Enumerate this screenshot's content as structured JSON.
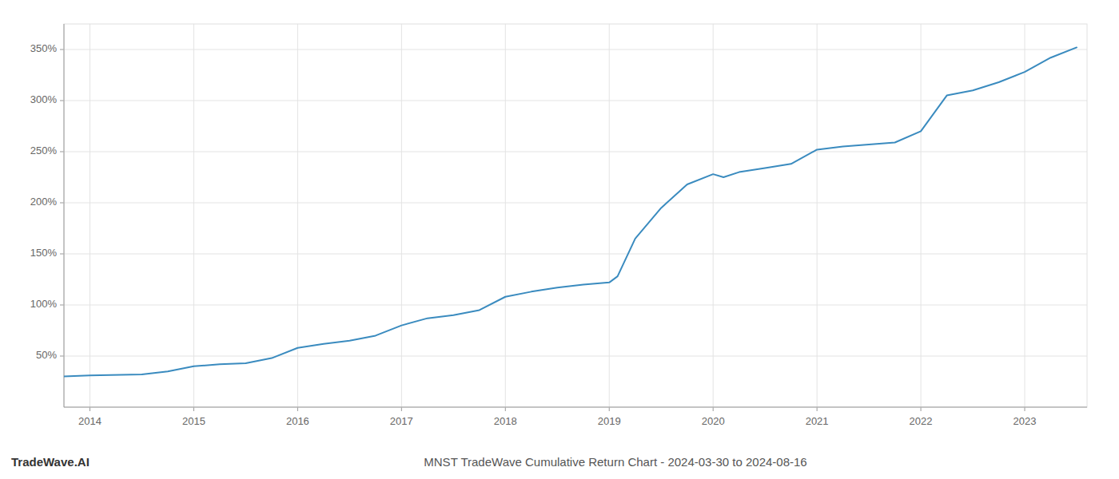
{
  "chart_data": {
    "type": "line",
    "title": "MNST TradeWave Cumulative Return Chart - 2024-03-30 to 2024-08-16",
    "annotations": [
      "TradeWave.AI"
    ],
    "x": [
      2013.75,
      2014.0,
      2014.2,
      2014.5,
      2014.75,
      2015.0,
      2015.25,
      2015.5,
      2015.75,
      2016.0,
      2016.25,
      2016.5,
      2016.75,
      2017.0,
      2017.25,
      2017.5,
      2017.75,
      2018.0,
      2018.25,
      2018.5,
      2018.75,
      2019.0,
      2019.08,
      2019.25,
      2019.5,
      2019.75,
      2020.0,
      2020.1,
      2020.25,
      2020.5,
      2020.75,
      2021.0,
      2021.25,
      2021.5,
      2021.75,
      2022.0,
      2022.25,
      2022.5,
      2022.75,
      2023.0,
      2023.25,
      2023.5
    ],
    "values": [
      30,
      31,
      31.5,
      32,
      35,
      40,
      42,
      43,
      48,
      58,
      62,
      65,
      70,
      80,
      87,
      90,
      95,
      108,
      113,
      117,
      120,
      122,
      128,
      165,
      195,
      218,
      228,
      225,
      230,
      234,
      238,
      252,
      255,
      257,
      259,
      270,
      305,
      310,
      318,
      328,
      342,
      352
    ],
    "color": "#3a8bbf",
    "xlim": [
      2013.75,
      2023.6
    ],
    "ylim": [
      0,
      375
    ],
    "xticks": [
      2014,
      2015,
      2016,
      2017,
      2018,
      2019,
      2020,
      2021,
      2022,
      2023
    ],
    "yticks": [
      {
        "value": 50,
        "label": "50%"
      },
      {
        "value": 100,
        "label": "100%"
      },
      {
        "value": 150,
        "label": "150%"
      },
      {
        "value": 200,
        "label": "200%"
      },
      {
        "value": 250,
        "label": "250%"
      },
      {
        "value": 300,
        "label": "300%"
      },
      {
        "value": 350,
        "label": "350%"
      }
    ],
    "grid": true
  }
}
